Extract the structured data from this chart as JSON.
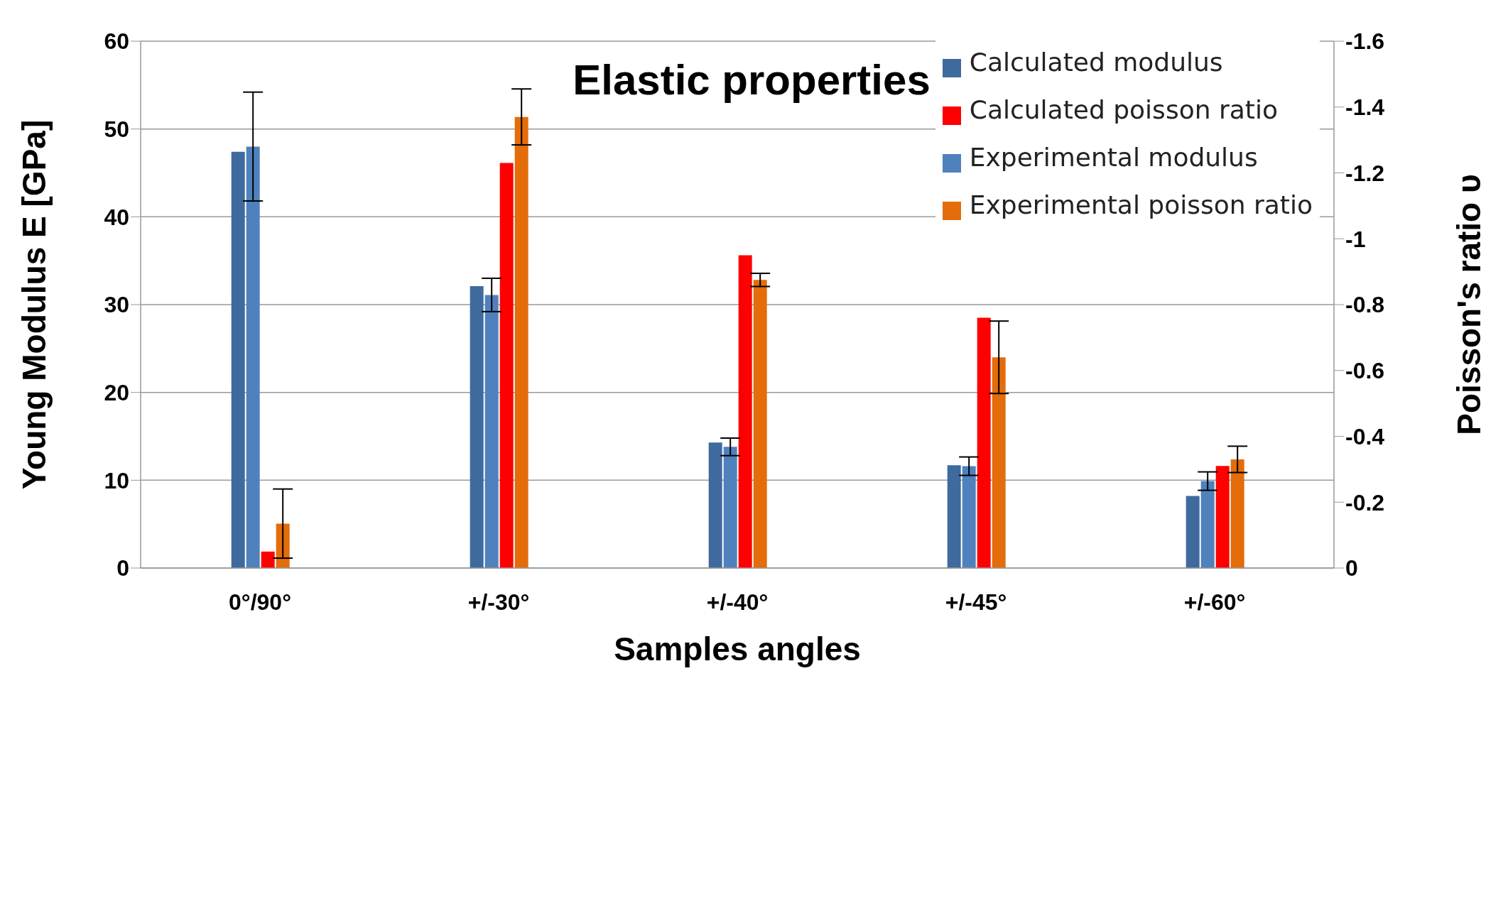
{
  "chart_data": {
    "type": "bar",
    "title": "Elastic properties",
    "xlabel": "Samples angles",
    "ylabel": "Young Modulus E [GPa]",
    "y2label": "Poisson's ratio υ",
    "categories": [
      "0°/90°",
      "+/-30°",
      "+/-40°",
      "+/-45°",
      "+/-60°"
    ],
    "series": [
      {
        "name": "Calculated modulus",
        "color": "#3f6a9e",
        "values": [
          47.4,
          32.1,
          14.3,
          11.7,
          8.2
        ]
      },
      {
        "name": "Experimental modulus",
        "color": "#4f81bd",
        "values": [
          48.0,
          31.1,
          13.8,
          11.6,
          9.9
        ],
        "errors": [
          6.2,
          1.9,
          1.0,
          1.05,
          1.05
        ]
      },
      {
        "name": "Calculated poisson ratio",
        "color": "#ff0000",
        "axis": "y2",
        "values": [
          -0.05,
          -1.23,
          -0.95,
          -0.76,
          -0.31
        ]
      },
      {
        "name": "Experimental poisson ratio",
        "color": "#e46c0a",
        "axis": "y2",
        "values": [
          -0.135,
          -1.37,
          -0.875,
          -0.64,
          -0.33
        ],
        "errors": [
          0.105,
          0.085,
          0.02,
          0.11,
          0.04
        ]
      }
    ],
    "ylim": [
      0,
      60
    ],
    "yticks": [
      0,
      10,
      20,
      30,
      40,
      50,
      60
    ],
    "y2lim": [
      0,
      -1.6
    ],
    "y2ticks": [
      0,
      -0.2,
      -0.4,
      -0.6,
      -0.8,
      -1,
      -1.2,
      -1.4,
      -1.6
    ],
    "grid": "y",
    "legend": "top right"
  }
}
